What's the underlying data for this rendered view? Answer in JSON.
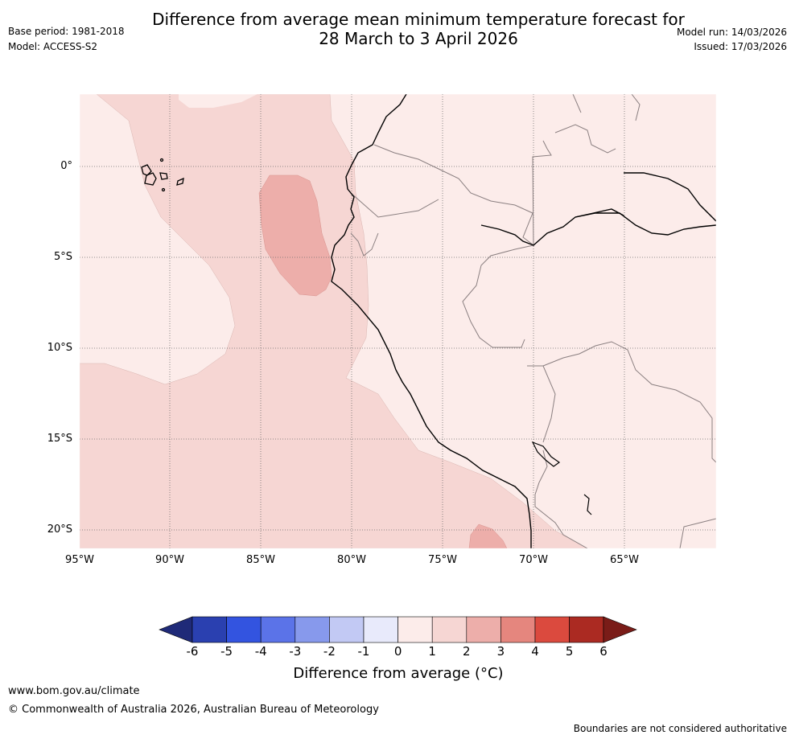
{
  "header": {
    "title_line1": "Difference from average mean minimum temperature forecast for",
    "title_line2": "28 March to 3 April 2026",
    "base_period": "Base period: 1981-2018",
    "model": "Model: ACCESS-S2",
    "model_run": "Model run: 14/03/2026",
    "issued": "Issued: 17/03/2026"
  },
  "map": {
    "lat_labels": [
      "0°",
      "5°S",
      "10°S",
      "15°S",
      "20°S"
    ],
    "lon_labels": [
      "95°W",
      "90°W",
      "85°W",
      "80°W",
      "75°W",
      "70°W",
      "65°W"
    ],
    "extent": {
      "lon_min": -95,
      "lon_max": -60,
      "lat_min": -21,
      "lat_max": 4
    },
    "features": {
      "galapagos-islands": "island outlines",
      "south-america-coastline": "coastline",
      "country-borders": "borders"
    }
  },
  "colorbar": {
    "ticks": [
      "-6",
      "-5",
      "-4",
      "-3",
      "-2",
      "-1",
      "0",
      "1",
      "2",
      "3",
      "4",
      "5",
      "6"
    ],
    "colors": [
      "#1f2a78",
      "#2a40b0",
      "#3354e0",
      "#5b73e8",
      "#8799ec",
      "#c2c9f4",
      "#e8eafb",
      "#fcecea",
      "#f6d6d3",
      "#edaeaa",
      "#e5867e",
      "#db4a3e",
      "#ab2a22",
      "#7a1c18"
    ],
    "title": "Difference from average (°C)"
  },
  "footer": {
    "website": "www.bom.gov.au/climate",
    "copyright": "© Commonwealth of Australia 2026, Australian Bureau of Meteorology",
    "disclaimer": "Boundaries are not considered authoritative"
  }
}
